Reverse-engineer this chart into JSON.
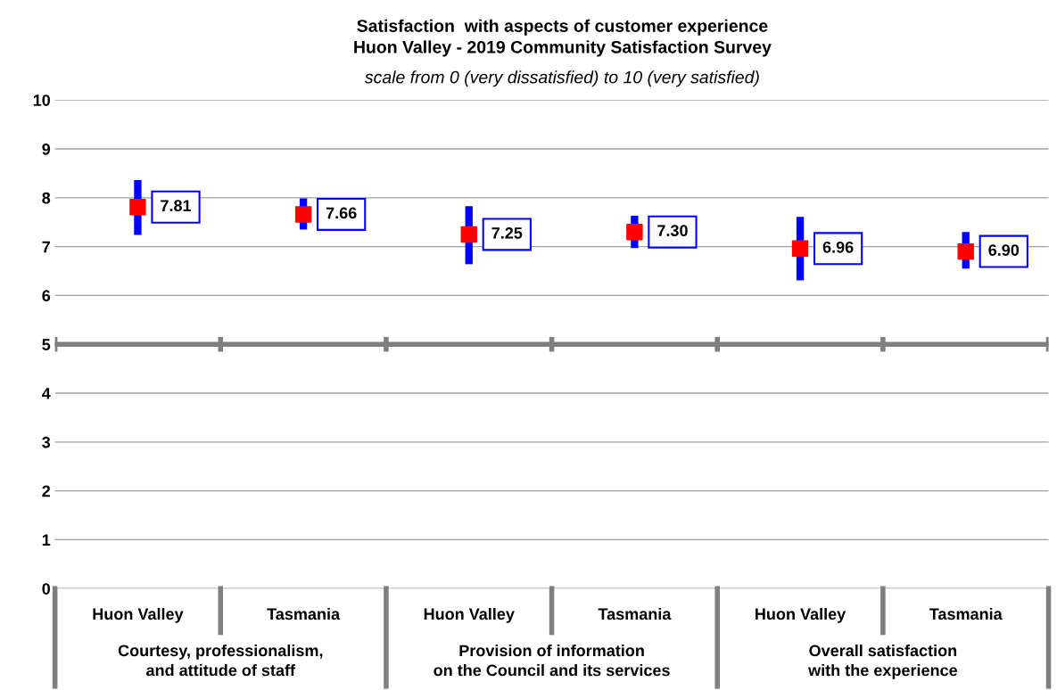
{
  "chart_data": {
    "type": "scatter",
    "title": "Satisfaction  with aspects of customer experience\nHuon Valley - 2019 Community Satisfaction Survey",
    "subtitle": "scale from 0 (very dissatisfied) to 10 (very satisfied)",
    "categories": [
      "Huon Valley",
      "Tasmania",
      "Huon Valley",
      "Tasmania",
      "Huon Valley",
      "Tasmania"
    ],
    "series": [
      {
        "color": "#ff0000",
        "values": [
          7.81,
          7.66,
          7.25,
          7.3,
          6.96,
          6.9
        ],
        "errors": [
          [
            7.24,
            8.36
          ],
          [
            7.35,
            7.99
          ],
          [
            6.64,
            7.83
          ],
          [
            6.97,
            7.63
          ],
          [
            6.31,
            7.61
          ],
          [
            6.55,
            7.3
          ]
        ],
        "value_labels": [
          "7.81",
          "7.66",
          "7.25",
          "7.30",
          "6.96",
          "6.90"
        ]
      }
    ],
    "annotations": [
      "Courtesy, professionalism,\nand attitude of staff",
      "Provision of information\non the Council and its services",
      "Overall satisfaction\nwith the experience"
    ],
    "ref_lines": [
      {
        "axis": "y",
        "value": 5,
        "color": "#7f7f7f"
      }
    ],
    "ylim": [
      0,
      10
    ],
    "yticks": [
      0,
      1,
      2,
      3,
      4,
      5,
      6,
      7,
      8,
      9,
      10
    ],
    "grid": "y",
    "marker": "square"
  }
}
